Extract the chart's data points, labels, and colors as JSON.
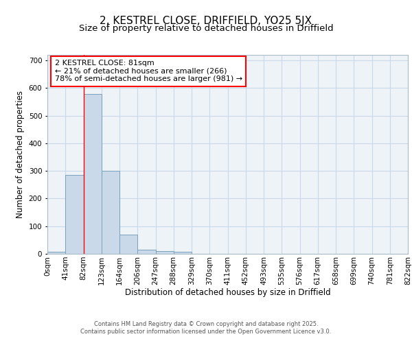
{
  "title": "2, KESTREL CLOSE, DRIFFIELD, YO25 5JX",
  "subtitle": "Size of property relative to detached houses in Driffield",
  "xlabel": "Distribution of detached houses by size in Driffield",
  "ylabel": "Number of detached properties",
  "bar_values": [
    8,
    285,
    578,
    300,
    70,
    15,
    10,
    8,
    0,
    0,
    0,
    0,
    0,
    0,
    0,
    0,
    0,
    0,
    0,
    0
  ],
  "bar_labels": [
    "0sqm",
    "41sqm",
    "82sqm",
    "123sqm",
    "164sqm",
    "206sqm",
    "247sqm",
    "288sqm",
    "329sqm",
    "370sqm",
    "411sqm",
    "452sqm",
    "493sqm",
    "535sqm",
    "576sqm",
    "617sqm",
    "658sqm",
    "699sqm",
    "740sqm",
    "781sqm",
    "822sqm"
  ],
  "bar_color": "#c9d9ea",
  "bar_edge_color": "#7aa0bc",
  "grid_color": "#c8d8e8",
  "bg_color": "#ffffff",
  "plot_bg_color": "#eef3f8",
  "red_line_x": 82,
  "annotation_text": "2 KESTREL CLOSE: 81sqm\n← 21% of detached houses are smaller (266)\n78% of semi-detached houses are larger (981) →",
  "annotation_box_color": "red",
  "ylim": [
    0,
    720
  ],
  "yticks": [
    0,
    100,
    200,
    300,
    400,
    500,
    600,
    700
  ],
  "bin_width": 41,
  "footer_text": "Contains HM Land Registry data © Crown copyright and database right 2025.\nContains public sector information licensed under the Open Government Licence v3.0.",
  "title_fontsize": 11,
  "subtitle_fontsize": 9.5,
  "label_fontsize": 8.5,
  "tick_fontsize": 7.5,
  "annotation_fontsize": 8
}
